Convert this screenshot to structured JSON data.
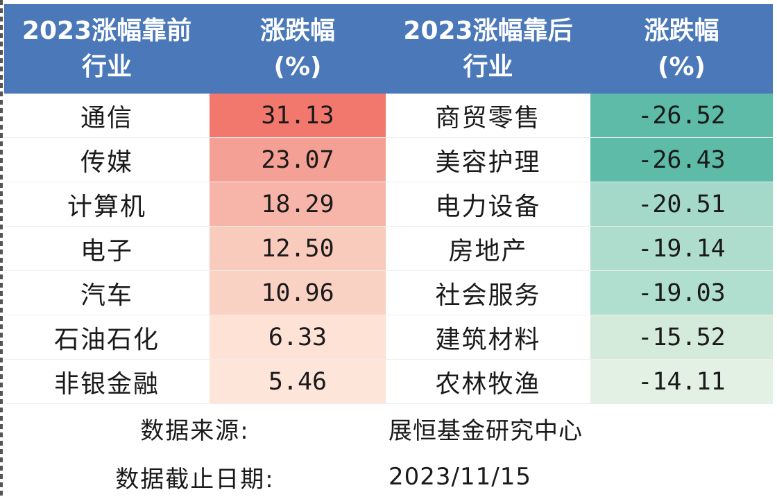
{
  "headers": [
    "2023涨幅靠前\n行业",
    "涨跌幅\n(%)",
    "2023涨幅靠后\n行业",
    "涨跌幅\n(%)"
  ],
  "rows": [
    {
      "top_industry": "通信",
      "top_change": "31.13",
      "top_color": "#f2786e",
      "bottom_industry": "商贸零售",
      "bottom_change": "-26.52",
      "bottom_color": "#5dbba7"
    },
    {
      "top_industry": "传媒",
      "top_change": "23.07",
      "top_color": "#f5a094",
      "bottom_industry": "美容护理",
      "bottom_change": "-26.43",
      "bottom_color": "#5dbba8"
    },
    {
      "top_industry": "计算机",
      "top_change": "18.29",
      "top_color": "#f7b5aa",
      "bottom_industry": "电力设备",
      "bottom_change": "-20.51",
      "bottom_color": "#a4d9c9"
    },
    {
      "top_industry": "电子",
      "top_change": "12.50",
      "top_color": "#f9cbbd",
      "bottom_industry": "房地产",
      "bottom_change": "-19.14",
      "bottom_color": "#afddcd"
    },
    {
      "top_industry": "汽车",
      "top_change": "10.96",
      "top_color": "#fad2c4",
      "bottom_industry": "社会服务",
      "bottom_change": "-19.03",
      "bottom_color": "#b0decf"
    },
    {
      "top_industry": "石油石化",
      "top_change": "6.33",
      "top_color": "#fde2d5",
      "bottom_industry": "建筑材料",
      "bottom_change": "-15.52",
      "bottom_color": "#d4ebdc"
    },
    {
      "top_industry": "非银金融",
      "top_change": "5.46",
      "top_color": "#fde5d9",
      "bottom_industry": "农林牧渔",
      "bottom_change": "-14.11",
      "bottom_color": "#e3f1e4"
    }
  ],
  "footer": {
    "source_label": "数据来源:",
    "source_value": "展恒基金研究中心",
    "date_label": "数据截止日期:",
    "date_value": "2023/11/15"
  },
  "chart_data": {
    "type": "table",
    "columns": [
      "2023涨幅靠前\n行业",
      "涨跌幅\n(%)",
      "2023涨幅靠后\n行业",
      "涨跌幅\n(%)"
    ],
    "rows": [
      [
        "通信",
        31.13,
        "商贸零售",
        -26.52
      ],
      [
        "传媒",
        23.07,
        "美容护理",
        -26.43
      ],
      [
        "计算机",
        18.29,
        "电力设备",
        -20.51
      ],
      [
        "电子",
        12.5,
        "房地产",
        -19.14
      ],
      [
        "汽车",
        10.96,
        "社会服务",
        -19.03
      ],
      [
        "石油石化",
        6.33,
        "建筑材料",
        -15.52
      ],
      [
        "非银金融",
        5.46,
        "农林牧渔",
        -14.11
      ]
    ],
    "header_color": "#4a78b8",
    "positive_color_scale": [
      "#fde5d9",
      "#f2786e"
    ],
    "negative_color_scale": [
      "#e3f1e4",
      "#5dbba7"
    ]
  }
}
